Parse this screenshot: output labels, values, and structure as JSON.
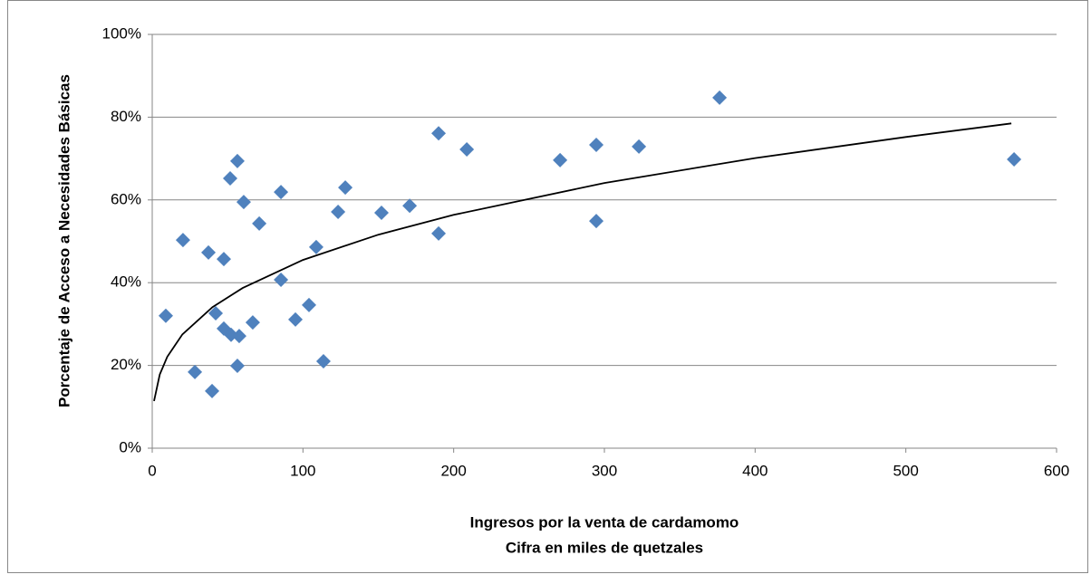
{
  "chart_data": {
    "type": "scatter",
    "xlabel": [
      "Ingresos por la venta de cardamomo",
      "Cifra en miles de quetzales"
    ],
    "ylabel": "Porcentaje de Acceso a Necesidades Básicas",
    "xlim": [
      0,
      600
    ],
    "xticks": [
      0,
      100,
      200,
      300,
      400,
      500,
      600
    ],
    "ylim": [
      0,
      100
    ],
    "yticks": [
      {
        "value": 0,
        "label": "0%"
      },
      {
        "value": 20,
        "label": "20%"
      },
      {
        "value": 40,
        "label": "40%"
      },
      {
        "value": 60,
        "label": "60%"
      },
      {
        "value": 80,
        "label": "80%"
      },
      {
        "value": 100,
        "label": "100%"
      }
    ],
    "grid": true,
    "color": "#4f81bd",
    "x": [
      9,
      20.4,
      28.3,
      37.3,
      39.7,
      42.1,
      47.5,
      47.5,
      51.7,
      52.3,
      56.5,
      56.5,
      57.7,
      60.7,
      66.7,
      71,
      85.4,
      85.4,
      95,
      104,
      108.8,
      113.6,
      123.3,
      128.1,
      152.1,
      170.8,
      190,
      190,
      208.7,
      270.6,
      294.6,
      294.6,
      322.9,
      376.4,
      571.8
    ],
    "values": [
      32,
      50.3,
      18.4,
      47.3,
      13.8,
      32.6,
      45.7,
      28.9,
      65.2,
      27.4,
      69.4,
      19.9,
      27.1,
      59.5,
      30.4,
      54.3,
      61.9,
      40.7,
      31.1,
      34.6,
      48.6,
      21,
      57.1,
      63,
      56.9,
      58.6,
      76.1,
      51.9,
      72.2,
      69.6,
      73.3,
      54.9,
      72.9,
      84.7,
      69.8
    ],
    "trendline": {
      "color": "#000000",
      "x": [
        1.2,
        5,
        10,
        20,
        40,
        60,
        100,
        150,
        200,
        300,
        400,
        500,
        570
      ],
      "values": [
        11.4,
        17.8,
        22.1,
        27.5,
        34.1,
        38.7,
        45.5,
        51.6,
        56.4,
        64.1,
        70.1,
        75.2,
        78.5
      ]
    }
  }
}
